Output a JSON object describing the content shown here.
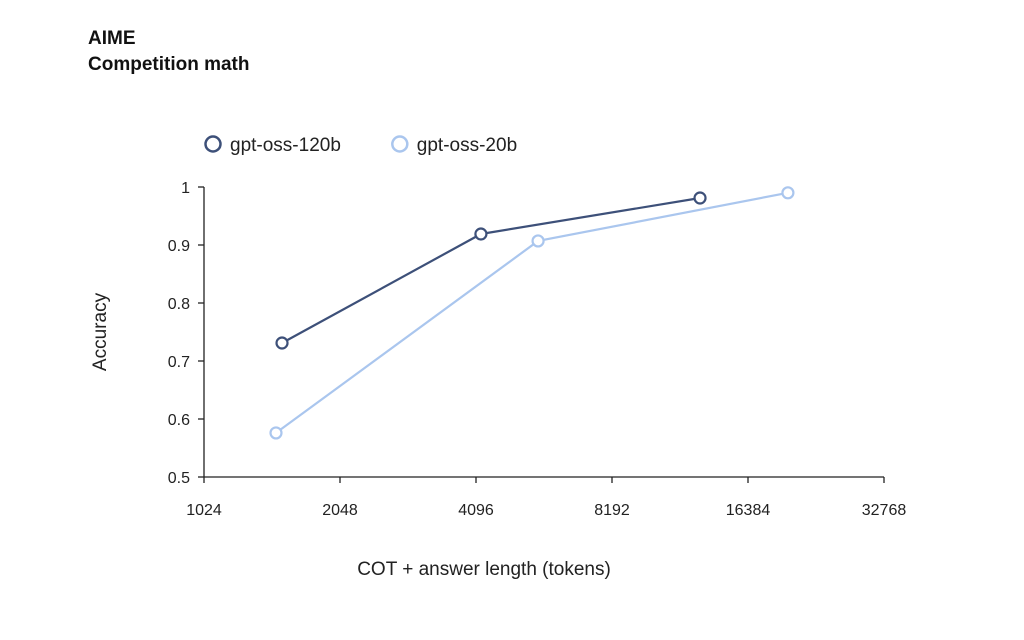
{
  "title_line1": "AIME",
  "title_line2": "Competition math",
  "chart_data": {
    "type": "line",
    "xlabel": "COT + answer length (tokens)",
    "ylabel": "Accuracy",
    "xscale": "log2",
    "xlim": [
      1024,
      32768
    ],
    "ylim": [
      0.5,
      1
    ],
    "xticks": [
      1024,
      2048,
      4096,
      8192,
      16384,
      32768
    ],
    "yticks": [
      0.5,
      0.6,
      0.7,
      0.8,
      0.9,
      1
    ],
    "ytick_labels": [
      "0.5",
      "0.6",
      "0.7",
      "0.8",
      "0.9",
      "1"
    ],
    "grid": false,
    "legend_position": "top-left",
    "series": [
      {
        "name": "gpt-oss-120b",
        "color": "#3d5079",
        "x": [
          1524,
          4200,
          12830
        ],
        "y": [
          0.731,
          0.919,
          0.981
        ]
      },
      {
        "name": "gpt-oss-20b",
        "color": "#aac6ee",
        "x": [
          1478,
          5620,
          20080
        ],
        "y": [
          0.576,
          0.907,
          0.99
        ]
      }
    ]
  }
}
